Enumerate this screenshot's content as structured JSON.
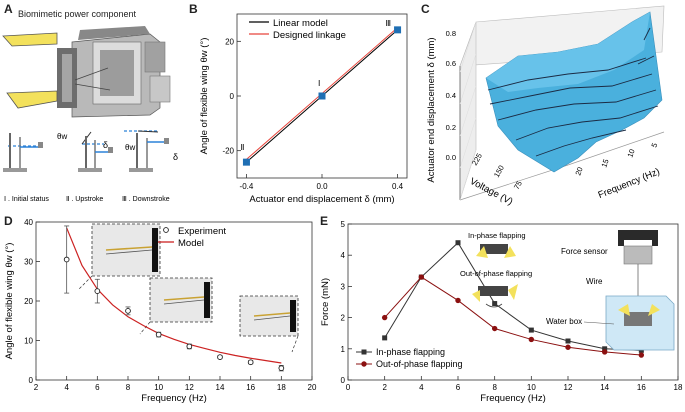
{
  "panels": {
    "A": {
      "letter": "A",
      "title": "Biomimetic power component",
      "theta_label": "θw",
      "delta_label": "δ",
      "states": [
        "Ⅰ . Initial status",
        "Ⅱ . Upstroke",
        "Ⅲ . Downstroke"
      ]
    },
    "B": {
      "letter": "B"
    },
    "C": {
      "letter": "C"
    },
    "D": {
      "letter": "D"
    },
    "E": {
      "letter": "E",
      "inset_labels": {
        "in_phase": "In-phase flapping",
        "out_phase": "Out-of-phase flapping",
        "force_sensor": "Force sensor",
        "wire": "Wire",
        "water_box": "Water box"
      }
    }
  },
  "chart_data": [
    {
      "id": "B",
      "type": "line",
      "xlabel": "Actuator end displacement δ (mm)",
      "ylabel": "Angle of flexible wing θw (°)",
      "xlim": [
        -0.45,
        0.45
      ],
      "ylim": [
        -30,
        30
      ],
      "xticks": [
        "-0.4",
        "0.0",
        "0.4"
      ],
      "yticks": [
        "-20",
        "0",
        "20"
      ],
      "legend": [
        "Linear model",
        "Designed linkage"
      ],
      "series": [
        {
          "name": "Linear model",
          "color": "#000000",
          "x": [
            -0.4,
            0.4
          ],
          "y": [
            -24.2,
            24.2
          ]
        },
        {
          "name": "Designed linkage",
          "color": "#e8453c",
          "x": [
            -0.4,
            0.4
          ],
          "y": [
            -23.2,
            25.0
          ]
        }
      ],
      "markers": [
        {
          "x": -0.4,
          "y": -24.2,
          "label": "Ⅱ"
        },
        {
          "x": 0.0,
          "y": 0.0,
          "label": "Ⅰ"
        },
        {
          "x": 0.4,
          "y": 24.2,
          "label": "Ⅲ"
        }
      ]
    },
    {
      "id": "C",
      "type": "surface3d",
      "zlabel": "Actuator end displacement δ (mm)",
      "xlabel": "Frequency (Hz)",
      "ylabel": "Voltage (V)",
      "zticks": [
        "0.0",
        "0.2",
        "0.4",
        "0.6",
        "0.8"
      ],
      "xticks": [
        "5",
        "10",
        "15",
        "20"
      ],
      "yticks": [
        "75",
        "150",
        "225"
      ],
      "zlim": [
        0,
        0.8
      ]
    },
    {
      "id": "D",
      "type": "scatter",
      "xlabel": "Frequency (Hz)",
      "ylabel": "Angle of flexible wing θw (°)",
      "xlim": [
        2,
        20
      ],
      "ylim": [
        0,
        40
      ],
      "xticks": [
        "2",
        "4",
        "6",
        "8",
        "10",
        "12",
        "14",
        "16",
        "18",
        "20"
      ],
      "yticks": [
        "0",
        "10",
        "20",
        "30",
        "40"
      ],
      "legend": [
        "Experiment",
        "Model"
      ],
      "experiment": {
        "x": [
          4,
          6,
          8,
          10,
          12,
          14,
          16,
          18
        ],
        "y": [
          30.5,
          22.5,
          17.5,
          11.5,
          8.5,
          5.8,
          4.5,
          3.0
        ],
        "err": [
          8.5,
          3.0,
          1.0,
          0.6,
          0.6,
          0.4,
          0.4,
          0.7
        ]
      },
      "model": {
        "color": "#cc2222",
        "x": [
          4,
          5,
          6,
          7,
          8,
          9,
          10,
          11,
          12,
          13,
          14,
          15,
          16,
          17,
          18
        ],
        "y": [
          38.5,
          29.0,
          23.0,
          19.0,
          16.0,
          13.8,
          11.8,
          10.3,
          9.0,
          8.0,
          7.0,
          6.2,
          5.5,
          4.9,
          4.3
        ]
      }
    },
    {
      "id": "E",
      "type": "line",
      "xlabel": "Frequency (Hz)",
      "ylabel": "Force (mN)",
      "xlim": [
        0,
        18
      ],
      "ylim": [
        0,
        5
      ],
      "xticks": [
        "0",
        "2",
        "4",
        "6",
        "8",
        "10",
        "12",
        "14",
        "16",
        "18"
      ],
      "yticks": [
        "0",
        "1",
        "2",
        "3",
        "4",
        "5"
      ],
      "legend": [
        "In-phase flapping",
        "Out-of-phase flapping"
      ],
      "series": [
        {
          "name": "In-phase flapping",
          "color": "#333333",
          "marker": "square",
          "x": [
            2,
            4,
            6,
            8,
            10,
            12,
            14,
            16
          ],
          "y": [
            1.35,
            3.3,
            4.4,
            2.45,
            1.6,
            1.25,
            1.0,
            0.95
          ]
        },
        {
          "name": "Out-of-phase flapping",
          "color": "#8b1010",
          "marker": "circle",
          "x": [
            2,
            4,
            6,
            8,
            10,
            12,
            14,
            16
          ],
          "y": [
            2.0,
            3.3,
            2.55,
            1.65,
            1.3,
            1.05,
            0.9,
            0.8
          ]
        }
      ]
    }
  ]
}
